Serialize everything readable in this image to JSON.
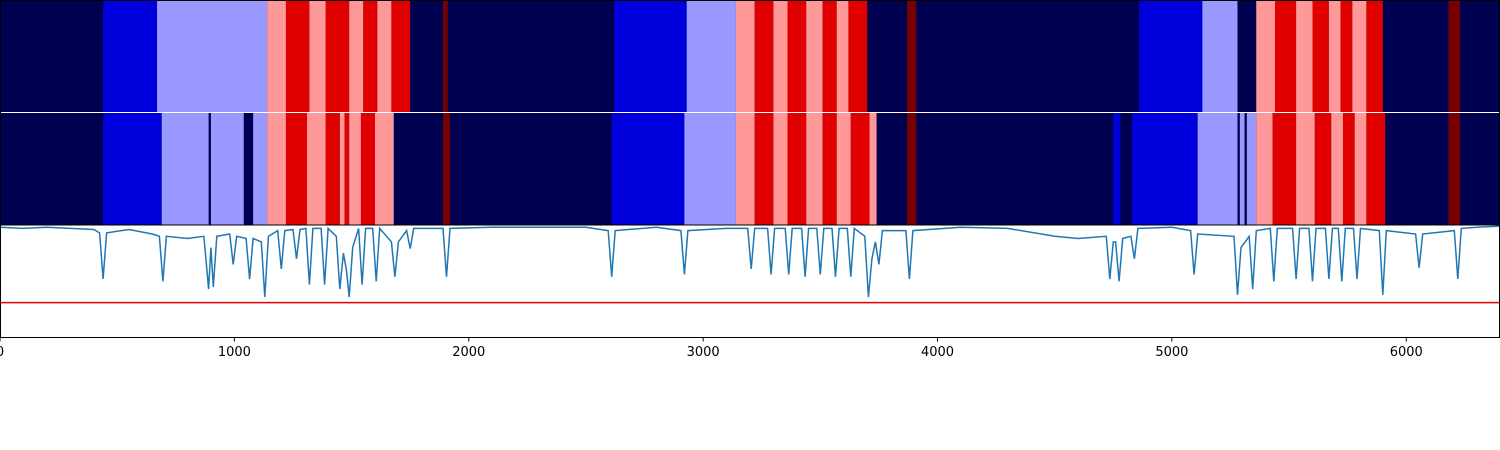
{
  "chart_data": {
    "type": "segments",
    "xlim": [
      0,
      6400
    ],
    "xticks": [
      0,
      1000,
      2000,
      3000,
      4000,
      5000,
      6000
    ],
    "rows": [
      {
        "background": "#000050",
        "segments": [
          {
            "x0": 440,
            "x1": 670,
            "color": "#0000dd"
          },
          {
            "x0": 670,
            "x1": 1140,
            "color": "#9999ff"
          },
          {
            "x0": 1140,
            "x1": 1220,
            "color": "#ff9999"
          },
          {
            "x0": 1220,
            "x1": 1320,
            "color": "#e00000"
          },
          {
            "x0": 1320,
            "x1": 1390,
            "color": "#ff9999"
          },
          {
            "x0": 1390,
            "x1": 1490,
            "color": "#e00000"
          },
          {
            "x0": 1490,
            "x1": 1550,
            "color": "#ff9999"
          },
          {
            "x0": 1550,
            "x1": 1610,
            "color": "#e00000"
          },
          {
            "x0": 1610,
            "x1": 1670,
            "color": "#ff9999"
          },
          {
            "x0": 1670,
            "x1": 1750,
            "color": "#e00000"
          },
          {
            "x0": 1890,
            "x1": 1910,
            "color": "#770000"
          },
          {
            "x0": 2620,
            "x1": 2930,
            "color": "#0000dd"
          },
          {
            "x0": 2930,
            "x1": 3140,
            "color": "#9999ff"
          },
          {
            "x0": 3140,
            "x1": 3220,
            "color": "#ff9999"
          },
          {
            "x0": 3220,
            "x1": 3300,
            "color": "#e00000"
          },
          {
            "x0": 3300,
            "x1": 3360,
            "color": "#ff9999"
          },
          {
            "x0": 3360,
            "x1": 3440,
            "color": "#e00000"
          },
          {
            "x0": 3440,
            "x1": 3510,
            "color": "#ff9999"
          },
          {
            "x0": 3510,
            "x1": 3570,
            "color": "#e00000"
          },
          {
            "x0": 3570,
            "x1": 3620,
            "color": "#ff9999"
          },
          {
            "x0": 3620,
            "x1": 3700,
            "color": "#e00000"
          },
          {
            "x0": 3870,
            "x1": 3910,
            "color": "#770000"
          },
          {
            "x0": 4860,
            "x1": 5130,
            "color": "#0000dd"
          },
          {
            "x0": 5130,
            "x1": 5280,
            "color": "#9999ff"
          },
          {
            "x0": 5360,
            "x1": 5440,
            "color": "#ff9999"
          },
          {
            "x0": 5440,
            "x1": 5530,
            "color": "#e00000"
          },
          {
            "x0": 5530,
            "x1": 5600,
            "color": "#ff9999"
          },
          {
            "x0": 5600,
            "x1": 5670,
            "color": "#e00000"
          },
          {
            "x0": 5670,
            "x1": 5720,
            "color": "#ff9999"
          },
          {
            "x0": 5720,
            "x1": 5770,
            "color": "#e00000"
          },
          {
            "x0": 5770,
            "x1": 5830,
            "color": "#ff9999"
          },
          {
            "x0": 5830,
            "x1": 5900,
            "color": "#e00000"
          },
          {
            "x0": 6180,
            "x1": 6230,
            "color": "#770000"
          }
        ]
      },
      {
        "background": "#000050",
        "segments": [
          {
            "x0": 440,
            "x1": 690,
            "color": "#0000dd"
          },
          {
            "x0": 690,
            "x1": 890,
            "color": "#9999ff"
          },
          {
            "x0": 900,
            "x1": 1040,
            "color": "#9999ff"
          },
          {
            "x0": 1080,
            "x1": 1140,
            "color": "#9999ff"
          },
          {
            "x0": 1140,
            "x1": 1220,
            "color": "#ff9999"
          },
          {
            "x0": 1220,
            "x1": 1310,
            "color": "#e00000"
          },
          {
            "x0": 1310,
            "x1": 1390,
            "color": "#ff9999"
          },
          {
            "x0": 1390,
            "x1": 1450,
            "color": "#e00000"
          },
          {
            "x0": 1450,
            "x1": 1470,
            "color": "#ff9999"
          },
          {
            "x0": 1470,
            "x1": 1490,
            "color": "#e00000"
          },
          {
            "x0": 1490,
            "x1": 1540,
            "color": "#ff9999"
          },
          {
            "x0": 1540,
            "x1": 1600,
            "color": "#e00000"
          },
          {
            "x0": 1600,
            "x1": 1680,
            "color": "#ff9999"
          },
          {
            "x0": 1890,
            "x1": 1920,
            "color": "#770000"
          },
          {
            "x0": 2610,
            "x1": 2920,
            "color": "#0000dd"
          },
          {
            "x0": 2920,
            "x1": 3140,
            "color": "#9999ff"
          },
          {
            "x0": 3140,
            "x1": 3220,
            "color": "#ff9999"
          },
          {
            "x0": 3220,
            "x1": 3300,
            "color": "#e00000"
          },
          {
            "x0": 3300,
            "x1": 3360,
            "color": "#ff9999"
          },
          {
            "x0": 3360,
            "x1": 3440,
            "color": "#e00000"
          },
          {
            "x0": 3440,
            "x1": 3510,
            "color": "#ff9999"
          },
          {
            "x0": 3510,
            "x1": 3570,
            "color": "#e00000"
          },
          {
            "x0": 3570,
            "x1": 3630,
            "color": "#ff9999"
          },
          {
            "x0": 3630,
            "x1": 3710,
            "color": "#e00000"
          },
          {
            "x0": 3710,
            "x1": 3740,
            "color": "#ff9999"
          },
          {
            "x0": 3870,
            "x1": 3910,
            "color": "#770000"
          },
          {
            "x0": 4750,
            "x1": 4780,
            "color": "#0000dd"
          },
          {
            "x0": 4830,
            "x1": 5110,
            "color": "#0000dd"
          },
          {
            "x0": 5110,
            "x1": 5280,
            "color": "#9999ff"
          },
          {
            "x0": 5290,
            "x1": 5310,
            "color": "#9999ff"
          },
          {
            "x0": 5320,
            "x1": 5360,
            "color": "#9999ff"
          },
          {
            "x0": 5360,
            "x1": 5430,
            "color": "#ff9999"
          },
          {
            "x0": 5430,
            "x1": 5530,
            "color": "#e00000"
          },
          {
            "x0": 5530,
            "x1": 5610,
            "color": "#ff9999"
          },
          {
            "x0": 5610,
            "x1": 5680,
            "color": "#e00000"
          },
          {
            "x0": 5680,
            "x1": 5730,
            "color": "#ff9999"
          },
          {
            "x0": 5730,
            "x1": 5780,
            "color": "#e00000"
          },
          {
            "x0": 5780,
            "x1": 5830,
            "color": "#ff9999"
          },
          {
            "x0": 5830,
            "x1": 5910,
            "color": "#e00000"
          },
          {
            "x0": 6180,
            "x1": 6230,
            "color": "#770000"
          }
        ]
      }
    ],
    "line": {
      "type": "line",
      "color": "#1f77b4",
      "ylim": [
        0,
        1
      ],
      "threshold": 0.31,
      "threshold_color": "#e00000",
      "x": [
        0,
        100,
        200,
        300,
        400,
        425,
        440,
        455,
        550,
        650,
        680,
        695,
        710,
        800,
        870,
        890,
        900,
        910,
        925,
        980,
        995,
        1010,
        1050,
        1065,
        1080,
        1115,
        1130,
        1145,
        1185,
        1200,
        1215,
        1250,
        1265,
        1280,
        1305,
        1320,
        1335,
        1370,
        1385,
        1400,
        1435,
        1450,
        1465,
        1478,
        1490,
        1505,
        1530,
        1545,
        1560,
        1590,
        1605,
        1620,
        1670,
        1685,
        1700,
        1735,
        1750,
        1765,
        1890,
        1905,
        1920,
        2100,
        2300,
        2500,
        2595,
        2610,
        2625,
        2800,
        2905,
        2920,
        2935,
        3100,
        3190,
        3205,
        3220,
        3275,
        3290,
        3305,
        3350,
        3365,
        3380,
        3420,
        3435,
        3450,
        3485,
        3500,
        3515,
        3550,
        3565,
        3580,
        3615,
        3630,
        3645,
        3690,
        3705,
        3720,
        3735,
        3750,
        3765,
        3865,
        3880,
        3895,
        4100,
        4300,
        4500,
        4600,
        4720,
        4735,
        4750,
        4760,
        4775,
        4790,
        4825,
        4840,
        4855,
        5000,
        5080,
        5095,
        5110,
        5265,
        5280,
        5295,
        5330,
        5345,
        5360,
        5420,
        5435,
        5450,
        5515,
        5530,
        5545,
        5585,
        5600,
        5615,
        5655,
        5670,
        5685,
        5710,
        5725,
        5740,
        5775,
        5790,
        5805,
        5885,
        5900,
        5915,
        6040,
        6055,
        6070,
        6205,
        6220,
        6235,
        6300,
        6400
      ],
      "values": [
        0.98,
        0.97,
        0.98,
        0.97,
        0.96,
        0.93,
        0.52,
        0.93,
        0.96,
        0.92,
        0.9,
        0.5,
        0.9,
        0.88,
        0.9,
        0.43,
        0.8,
        0.45,
        0.9,
        0.92,
        0.65,
        0.9,
        0.88,
        0.52,
        0.88,
        0.85,
        0.36,
        0.9,
        0.95,
        0.61,
        0.95,
        0.96,
        0.7,
        0.96,
        0.97,
        0.47,
        0.97,
        0.97,
        0.47,
        0.97,
        0.9,
        0.43,
        0.75,
        0.6,
        0.36,
        0.8,
        0.97,
        0.47,
        0.97,
        0.97,
        0.5,
        0.97,
        0.85,
        0.54,
        0.85,
        0.95,
        0.79,
        0.97,
        0.97,
        0.54,
        0.97,
        0.98,
        0.98,
        0.98,
        0.95,
        0.54,
        0.95,
        0.98,
        0.95,
        0.56,
        0.95,
        0.97,
        0.97,
        0.61,
        0.97,
        0.97,
        0.56,
        0.97,
        0.97,
        0.56,
        0.97,
        0.97,
        0.54,
        0.97,
        0.97,
        0.56,
        0.97,
        0.97,
        0.54,
        0.97,
        0.97,
        0.54,
        0.97,
        0.9,
        0.36,
        0.7,
        0.85,
        0.65,
        0.95,
        0.95,
        0.52,
        0.95,
        0.98,
        0.97,
        0.9,
        0.88,
        0.9,
        0.52,
        0.85,
        0.85,
        0.5,
        0.88,
        0.9,
        0.7,
        0.97,
        0.98,
        0.95,
        0.56,
        0.92,
        0.9,
        0.38,
        0.8,
        0.9,
        0.43,
        0.95,
        0.97,
        0.5,
        0.97,
        0.97,
        0.52,
        0.97,
        0.97,
        0.5,
        0.97,
        0.97,
        0.52,
        0.97,
        0.97,
        0.5,
        0.97,
        0.97,
        0.52,
        0.97,
        0.95,
        0.38,
        0.95,
        0.92,
        0.62,
        0.92,
        0.95,
        0.52,
        0.97,
        0.98,
        0.99
      ]
    }
  }
}
